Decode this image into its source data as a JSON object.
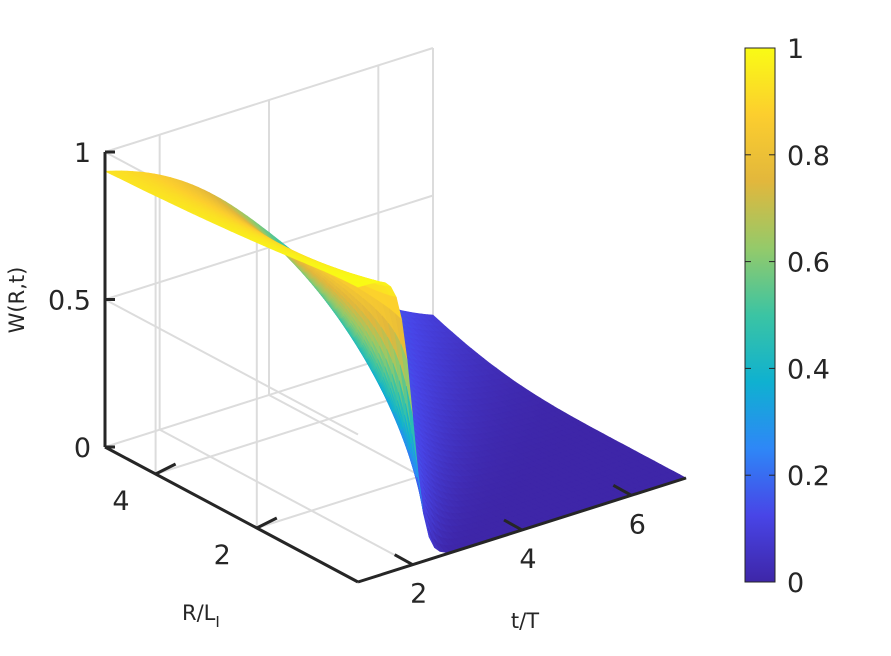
{
  "chart_data": {
    "type": "surface",
    "xlabel": "t/T",
    "ylabel_main": "R/L",
    "ylabel_sub": "I",
    "zlabel": "W(R,t)",
    "x_ticks": [
      "2",
      "4",
      "6"
    ],
    "y_ticks": [
      "2",
      "4"
    ],
    "z_ticks": [
      "0",
      "0.5",
      "1"
    ],
    "colorbar_ticks": [
      "0",
      "0.2",
      "0.4",
      "0.6",
      "0.8",
      "1"
    ],
    "xlim": [
      1,
      7
    ],
    "ylim": [
      0,
      5
    ],
    "zlim": [
      0,
      1
    ],
    "colormap": "parula",
    "colormap_stops": [
      "#3e26a8",
      "#4845e7",
      "#2e87f7",
      "#0fb1d0",
      "#3bc4a3",
      "#94ca6a",
      "#e2b73c",
      "#fcce2e",
      "#f9fb15"
    ],
    "grid": true,
    "colorbar": "right",
    "surface_model": {
      "description_of_values": "W is ~1 at early times, drops sharply near t/T≈2 for small R and more gradually at larger R, reaching ~0 by t/T≈7",
      "samples": [
        {
          "t": 1.0,
          "R": 0.5,
          "W": 1.0
        },
        {
          "t": 1.6,
          "R": 0.5,
          "W": 0.99
        },
        {
          "t": 2.0,
          "R": 0.5,
          "W": 0.5
        },
        {
          "t": 2.5,
          "R": 0.5,
          "W": 0.02
        },
        {
          "t": 2.0,
          "R": 2.5,
          "W": 0.92
        },
        {
          "t": 3.0,
          "R": 2.5,
          "W": 0.5
        },
        {
          "t": 4.5,
          "R": 2.5,
          "W": 0.1
        },
        {
          "t": 3.0,
          "R": 4.5,
          "W": 0.85
        },
        {
          "t": 4.0,
          "R": 4.5,
          "W": 0.5
        },
        {
          "t": 7.0,
          "R": 4.5,
          "W": 0.0
        }
      ]
    }
  }
}
